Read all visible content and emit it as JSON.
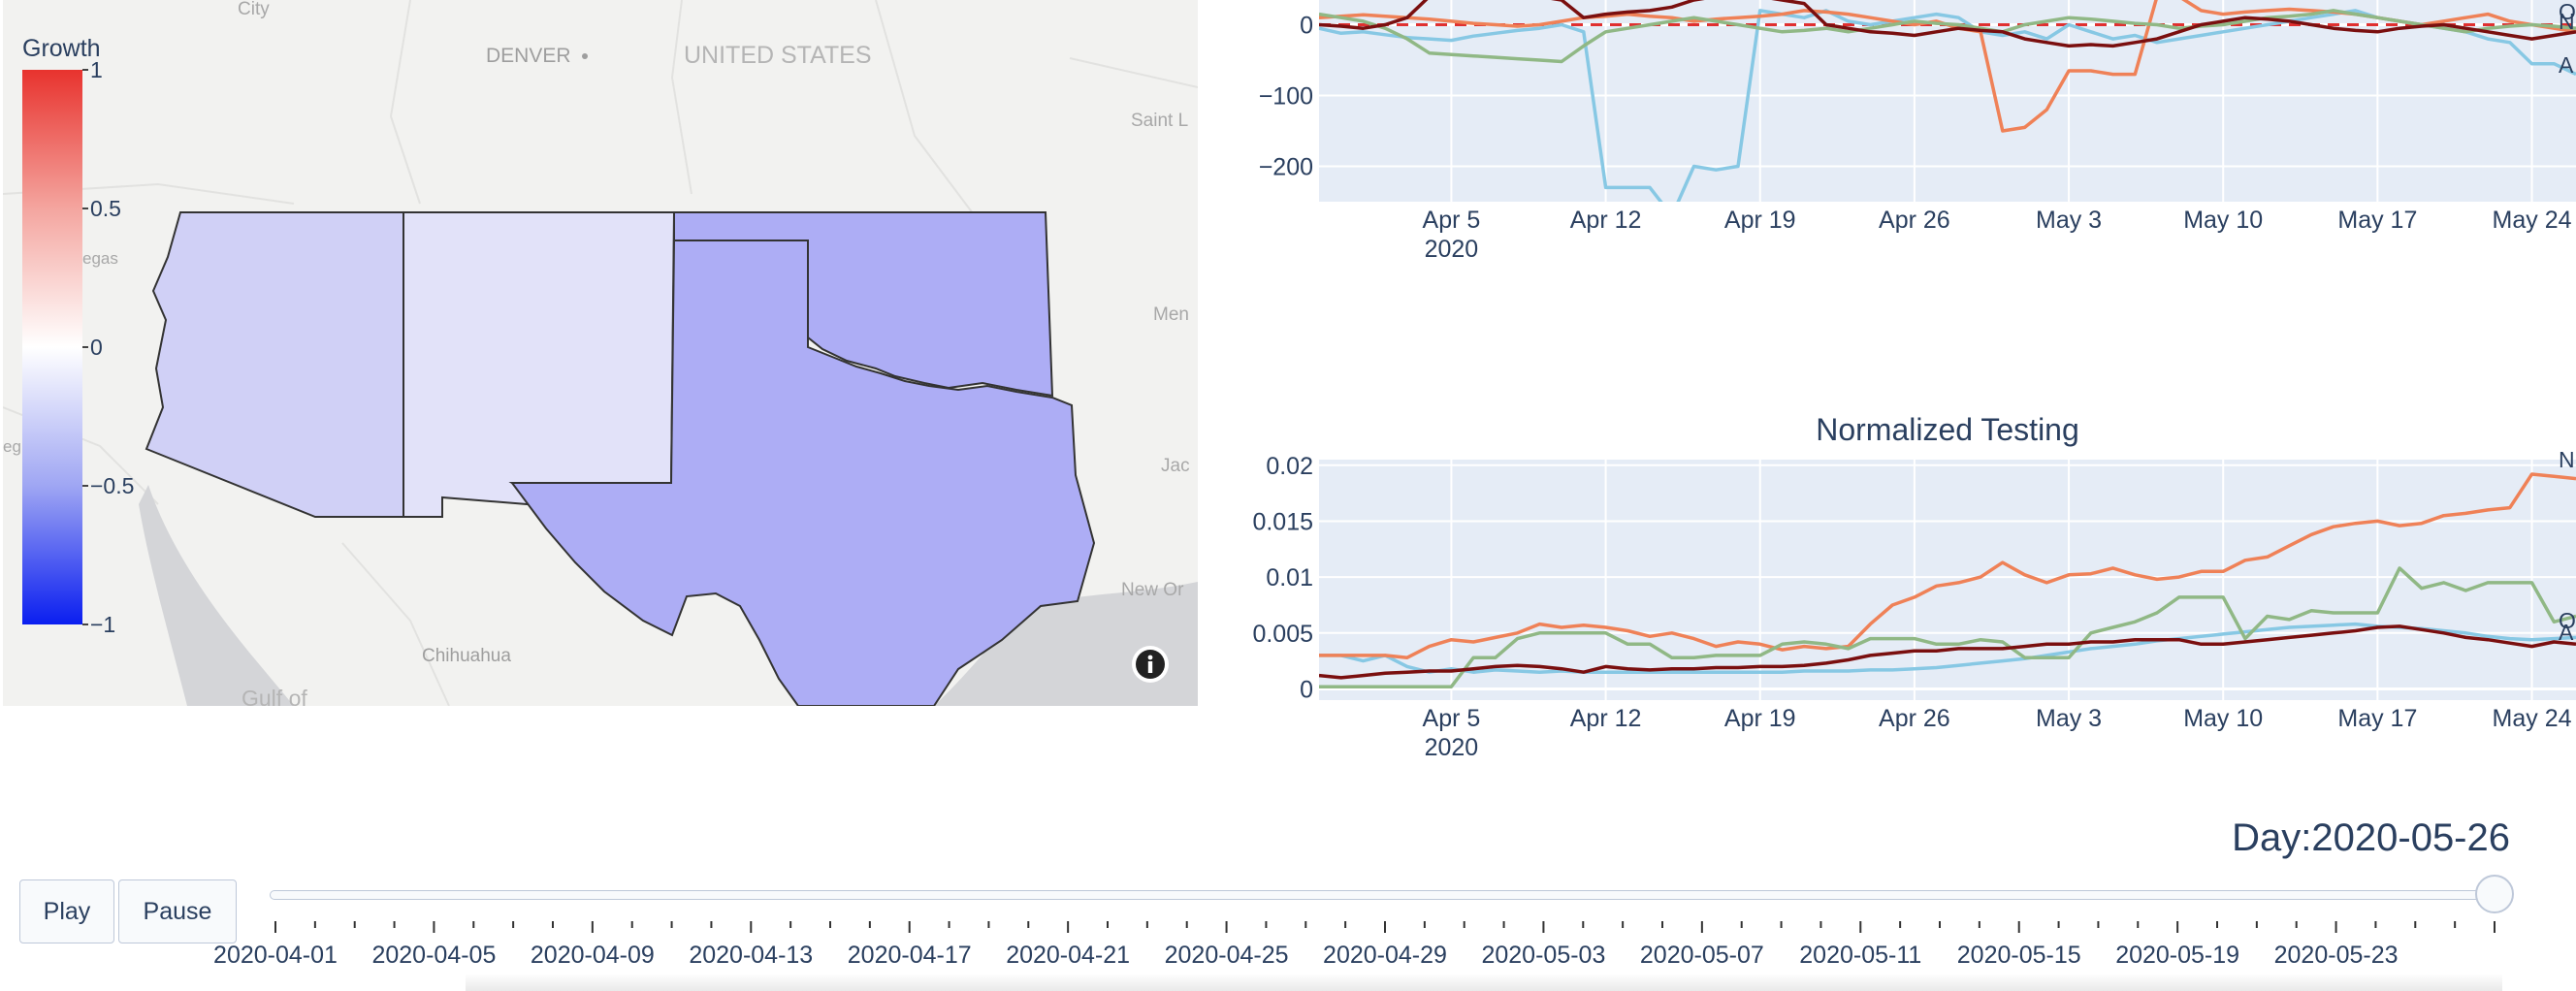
{
  "map": {
    "colorbar": {
      "title": "Growth",
      "ticks": [
        "1",
        "0.5",
        "0",
        "−0.5",
        "−1"
      ],
      "tick_values": [
        1,
        0.5,
        0,
        -0.5,
        -1
      ]
    },
    "place_labels": {
      "city": "City",
      "denver": "DENVER",
      "country": "UNITED STATES",
      "saint": "Saint L",
      "vegas": "egas",
      "men": "Men",
      "jac": "Jac",
      "neworleans": "New Or",
      "chihuahua": "Chihuahua",
      "gulf": "Gulf of",
      "left_edge": "eg"
    },
    "states": [
      {
        "name": "Arizona",
        "growth": -0.18,
        "color": "#d0d0f6"
      },
      {
        "name": "New Mexico",
        "growth": -0.1,
        "color": "#e2e2f9"
      },
      {
        "name": "Oklahoma",
        "growth": -0.33,
        "color": "#adadf5"
      },
      {
        "name": "Texas",
        "growth": -0.33,
        "color": "#adadf5"
      }
    ],
    "info_icon": "info-icon"
  },
  "controls": {
    "play_label": "Play",
    "pause_label": "Pause",
    "day_label": "Day:2020-05-26",
    "slider_value": "2020-05-26",
    "slider_tick_labels": [
      "2020-04-01",
      "2020-04-05",
      "2020-04-09",
      "2020-04-13",
      "2020-04-17",
      "2020-04-21",
      "2020-04-25",
      "2020-04-29",
      "2020-05-03",
      "2020-05-07",
      "2020-05-11",
      "2020-05-15",
      "2020-05-19",
      "2020-05-23"
    ]
  },
  "chart_data": [
    {
      "type": "line",
      "title": "",
      "x_tick_labels": [
        "Apr 5",
        "Apr 12",
        "Apr 19",
        "Apr 26",
        "May 3",
        "May 10",
        "May 17",
        "May 24"
      ],
      "x_year_label": "2020",
      "y_tick_labels": [
        "0",
        "−100",
        "−200"
      ],
      "y_tick_values": [
        0,
        -100,
        -200
      ],
      "xlim": [
        "2020-03-30",
        "2020-05-26"
      ],
      "ylim": [
        -250,
        35
      ],
      "grid": true,
      "reference_line": {
        "y": 0,
        "color": "#e03030",
        "style": "dashed"
      },
      "end_labels": [
        "O",
        "N",
        "A"
      ],
      "series": [
        {
          "color": "#87c8e4",
          "values": [
            -5,
            -12,
            -10,
            -14,
            -18,
            -20,
            -22,
            -16,
            -12,
            -8,
            -5,
            0,
            -10,
            -230,
            -230,
            -230,
            -270,
            -200,
            -205,
            -200,
            20,
            15,
            10,
            20,
            5,
            0,
            5,
            10,
            15,
            10,
            -10,
            -15,
            -10,
            -20,
            0,
            -10,
            -20,
            -15,
            -25,
            -20,
            -15,
            -10,
            -5,
            0,
            5,
            10,
            15,
            20,
            10,
            5,
            0,
            -5,
            -10,
            -20,
            -25,
            -55,
            -55,
            -70
          ]
        },
        {
          "color": "#ef8157",
          "values": [
            10,
            12,
            14,
            12,
            10,
            8,
            5,
            2,
            0,
            -2,
            0,
            5,
            10,
            12,
            15,
            12,
            10,
            5,
            8,
            10,
            12,
            15,
            20,
            18,
            15,
            10,
            5,
            0,
            5,
            -5,
            -10,
            -150,
            -145,
            -120,
            -65,
            -65,
            -70,
            -70,
            40,
            40,
            20,
            15,
            18,
            20,
            22,
            20,
            18,
            15,
            10,
            5,
            0,
            5,
            10,
            15,
            5,
            0,
            -5,
            -10
          ]
        },
        {
          "color": "#90b885",
          "values": [
            15,
            10,
            5,
            -5,
            -20,
            -40,
            -42,
            -44,
            -46,
            -48,
            -50,
            -52,
            -30,
            -10,
            -5,
            0,
            5,
            10,
            5,
            0,
            -5,
            -10,
            -8,
            -5,
            -10,
            -5,
            0,
            5,
            2,
            0,
            -5,
            -10,
            0,
            5,
            10,
            8,
            5,
            2,
            0,
            -5,
            -2,
            0,
            5,
            10,
            12,
            15,
            20,
            15,
            10,
            5,
            0,
            -5,
            -10,
            -5,
            -2,
            0,
            -2,
            -5
          ]
        },
        {
          "color": "#7a0f0f",
          "values": [
            0,
            -2,
            -5,
            0,
            10,
            40,
            50,
            55,
            50,
            45,
            40,
            35,
            10,
            15,
            18,
            20,
            25,
            35,
            40,
            45,
            40,
            35,
            30,
            0,
            -5,
            -10,
            -12,
            -15,
            -10,
            -5,
            -8,
            -10,
            -20,
            -25,
            -30,
            -28,
            -30,
            -25,
            -20,
            -10,
            0,
            5,
            10,
            8,
            5,
            0,
            -5,
            -8,
            -10,
            -5,
            -2,
            0,
            -5,
            -10,
            -15,
            -20,
            -15,
            -10
          ]
        }
      ]
    },
    {
      "type": "line",
      "title": "Normalized Testing",
      "x_tick_labels": [
        "Apr 5",
        "Apr 12",
        "Apr 19",
        "Apr 26",
        "May 3",
        "May 10",
        "May 17",
        "May 24"
      ],
      "x_year_label": "2020",
      "y_tick_labels": [
        "0",
        "0.005",
        "0.01",
        "0.015",
        "0.02"
      ],
      "y_tick_values": [
        0,
        0.005,
        0.01,
        0.015,
        0.02
      ],
      "xlim": [
        "2020-03-30",
        "2020-05-26"
      ],
      "ylim": [
        -0.001,
        0.0205
      ],
      "grid": true,
      "end_labels": [
        "N",
        "O",
        "A"
      ],
      "series": [
        {
          "color": "#87c8e4",
          "values": [
            0.003,
            0.003,
            0.0025,
            0.003,
            0.002,
            0.0015,
            0.0018,
            0.0015,
            0.0017,
            0.0016,
            0.0015,
            0.0016,
            0.0015,
            0.0015,
            0.0015,
            0.0015,
            0.0015,
            0.0015,
            0.0015,
            0.0015,
            0.0015,
            0.0015,
            0.0016,
            0.0016,
            0.0016,
            0.0017,
            0.0017,
            0.0018,
            0.0019,
            0.0021,
            0.0023,
            0.0025,
            0.0027,
            0.003,
            0.0033,
            0.0036,
            0.0038,
            0.004,
            0.0043,
            0.0045,
            0.0047,
            0.0049,
            0.0051,
            0.0053,
            0.0055,
            0.0056,
            0.0057,
            0.0058,
            0.0056,
            0.0055,
            0.0054,
            0.0052,
            0.005,
            0.0047,
            0.0045,
            0.0044,
            0.0045,
            0.0046
          ]
        },
        {
          "color": "#ef8157",
          "values": [
            0.003,
            0.003,
            0.003,
            0.003,
            0.0028,
            0.0038,
            0.0044,
            0.0042,
            0.0046,
            0.005,
            0.0058,
            0.0055,
            0.0057,
            0.0055,
            0.0052,
            0.0047,
            0.005,
            0.0045,
            0.0038,
            0.0042,
            0.004,
            0.0035,
            0.0038,
            0.0036,
            0.0038,
            0.0058,
            0.0075,
            0.0082,
            0.0092,
            0.0095,
            0.01,
            0.0113,
            0.0102,
            0.0095,
            0.0102,
            0.0103,
            0.0108,
            0.0102,
            0.0098,
            0.01,
            0.0105,
            0.0105,
            0.0115,
            0.0118,
            0.0128,
            0.0138,
            0.0145,
            0.0148,
            0.015,
            0.0146,
            0.0148,
            0.0155,
            0.0157,
            0.016,
            0.0162,
            0.0192,
            0.019,
            0.0188
          ]
        },
        {
          "color": "#90b885",
          "values": [
            0.0002,
            0.0002,
            0.0002,
            0.0002,
            0.0002,
            0.0002,
            0.0002,
            0.0028,
            0.0028,
            0.0045,
            0.005,
            0.005,
            0.005,
            0.005,
            0.004,
            0.004,
            0.0028,
            0.0028,
            0.003,
            0.003,
            0.003,
            0.004,
            0.0042,
            0.004,
            0.0036,
            0.0045,
            0.0045,
            0.0045,
            0.004,
            0.004,
            0.0044,
            0.0042,
            0.0028,
            0.0028,
            0.0028,
            0.005,
            0.0055,
            0.006,
            0.0068,
            0.0082,
            0.0082,
            0.0082,
            0.0045,
            0.0065,
            0.0062,
            0.007,
            0.0068,
            0.0068,
            0.0068,
            0.0108,
            0.009,
            0.0095,
            0.0088,
            0.0095,
            0.0095,
            0.0095,
            0.006,
            0.0065
          ]
        },
        {
          "color": "#7a0f0f",
          "values": [
            0.0012,
            0.001,
            0.0012,
            0.0014,
            0.0015,
            0.0016,
            0.0016,
            0.0018,
            0.002,
            0.0021,
            0.002,
            0.0018,
            0.0015,
            0.002,
            0.0018,
            0.0017,
            0.0018,
            0.0018,
            0.0019,
            0.0019,
            0.002,
            0.002,
            0.0021,
            0.0023,
            0.0026,
            0.003,
            0.0032,
            0.0034,
            0.0034,
            0.0036,
            0.0036,
            0.0036,
            0.0038,
            0.004,
            0.004,
            0.0042,
            0.0042,
            0.0044,
            0.0044,
            0.0044,
            0.004,
            0.004,
            0.0042,
            0.0044,
            0.0046,
            0.0048,
            0.005,
            0.0052,
            0.0055,
            0.0056,
            0.0053,
            0.005,
            0.0046,
            0.0044,
            0.0041,
            0.0038,
            0.0042,
            0.004
          ]
        }
      ]
    }
  ]
}
